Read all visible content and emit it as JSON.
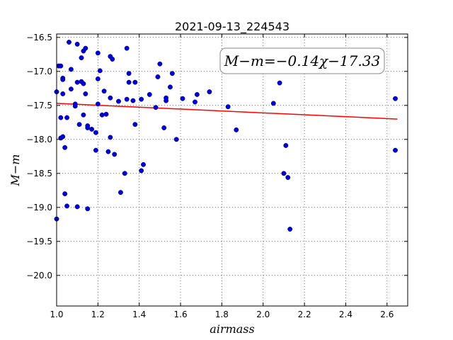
{
  "chart_data": {
    "type": "scatter",
    "title": "2021-09-13_224543",
    "xlabel": "airmass",
    "ylabel": "M−m",
    "xlim": [
      1.0,
      2.7
    ],
    "ylim": [
      -20.45,
      -16.45
    ],
    "y_inverted": true,
    "grid": true,
    "xticks": [
      1.0,
      1.2,
      1.4,
      1.6,
      1.8,
      2.0,
      2.2,
      2.4,
      2.6
    ],
    "xtick_labels": [
      "1.0",
      "1.2",
      "1.4",
      "1.6",
      "1.8",
      "2.0",
      "2.2",
      "2.4",
      "2.6"
    ],
    "yticks": [
      -16.5,
      -17.0,
      -17.5,
      -18.0,
      -18.5,
      -19.0,
      -19.5,
      -20.0
    ],
    "ytick_labels": [
      "−16.5",
      "−17.0",
      "−17.5",
      "−18.0",
      "−18.5",
      "−19.0",
      "−19.5",
      "−20.0"
    ],
    "annotation": "M−m=−0.14χ−17.33",
    "fit": {
      "slope": -0.14,
      "intercept": -17.33,
      "x_range": [
        1.0,
        2.65
      ],
      "color": "#ff0000"
    },
    "point_color": "#0000cc",
    "points": [
      [
        1.0,
        -17.3
      ],
      [
        1.0,
        -19.17
      ],
      [
        1.01,
        -16.92
      ],
      [
        1.02,
        -16.92
      ],
      [
        1.02,
        -17.68
      ],
      [
        1.02,
        -17.98
      ],
      [
        1.03,
        -17.96
      ],
      [
        1.03,
        -17.1
      ],
      [
        1.03,
        -17.12
      ],
      [
        1.03,
        -17.33
      ],
      [
        1.04,
        -18.12
      ],
      [
        1.04,
        -18.8
      ],
      [
        1.05,
        -18.98
      ],
      [
        1.05,
        -17.68
      ],
      [
        1.06,
        -16.57
      ],
      [
        1.07,
        -16.97
      ],
      [
        1.07,
        -17.26
      ],
      [
        1.09,
        -17.48
      ],
      [
        1.09,
        -17.51
      ],
      [
        1.1,
        -18.99
      ],
      [
        1.1,
        -16.6
      ],
      [
        1.1,
        -17.16
      ],
      [
        1.11,
        -17.78
      ],
      [
        1.12,
        -16.8
      ],
      [
        1.12,
        -17.15
      ],
      [
        1.13,
        -17.64
      ],
      [
        1.13,
        -17.18
      ],
      [
        1.13,
        -16.7
      ],
      [
        1.14,
        -16.66
      ],
      [
        1.14,
        -17.33
      ],
      [
        1.15,
        -17.8
      ],
      [
        1.15,
        -19.02
      ],
      [
        1.15,
        -17.83
      ],
      [
        1.17,
        -17.85
      ],
      [
        1.19,
        -17.9
      ],
      [
        1.19,
        -18.16
      ],
      [
        1.2,
        -17.11
      ],
      [
        1.2,
        -17.48
      ],
      [
        1.2,
        -16.73
      ],
      [
        1.21,
        -16.99
      ],
      [
        1.22,
        -17.64
      ],
      [
        1.23,
        -17.29
      ],
      [
        1.24,
        -17.63
      ],
      [
        1.25,
        -18.18
      ],
      [
        1.26,
        -16.78
      ],
      [
        1.26,
        -17.97
      ],
      [
        1.26,
        -17.39
      ],
      [
        1.27,
        -16.82
      ],
      [
        1.28,
        -18.22
      ],
      [
        1.3,
        -17.44
      ],
      [
        1.31,
        -18.78
      ],
      [
        1.33,
        -18.5
      ],
      [
        1.34,
        -16.66
      ],
      [
        1.34,
        -17.41
      ],
      [
        1.35,
        -17.03
      ],
      [
        1.35,
        -17.16
      ],
      [
        1.37,
        -17.43
      ],
      [
        1.38,
        -17.16
      ],
      [
        1.38,
        -17.78
      ],
      [
        1.41,
        -17.41
      ],
      [
        1.41,
        -18.46
      ],
      [
        1.42,
        -18.37
      ],
      [
        1.45,
        -17.34
      ],
      [
        1.48,
        -17.53
      ],
      [
        1.49,
        -17.08
      ],
      [
        1.5,
        -16.89
      ],
      [
        1.52,
        -17.83
      ],
      [
        1.53,
        -17.43
      ],
      [
        1.53,
        -17.39
      ],
      [
        1.55,
        -17.23
      ],
      [
        1.56,
        -17.03
      ],
      [
        1.58,
        -18.0
      ],
      [
        1.61,
        -17.4
      ],
      [
        1.67,
        -17.45
      ],
      [
        1.68,
        -17.34
      ],
      [
        1.74,
        -17.3
      ],
      [
        1.83,
        -17.52
      ],
      [
        1.87,
        -17.86
      ],
      [
        2.05,
        -17.47
      ],
      [
        2.08,
        -17.17
      ],
      [
        2.1,
        -18.5
      ],
      [
        2.11,
        -18.09
      ],
      [
        2.12,
        -18.56
      ],
      [
        2.13,
        -19.32
      ],
      [
        2.64,
        -17.4
      ],
      [
        2.64,
        -18.16
      ]
    ]
  }
}
